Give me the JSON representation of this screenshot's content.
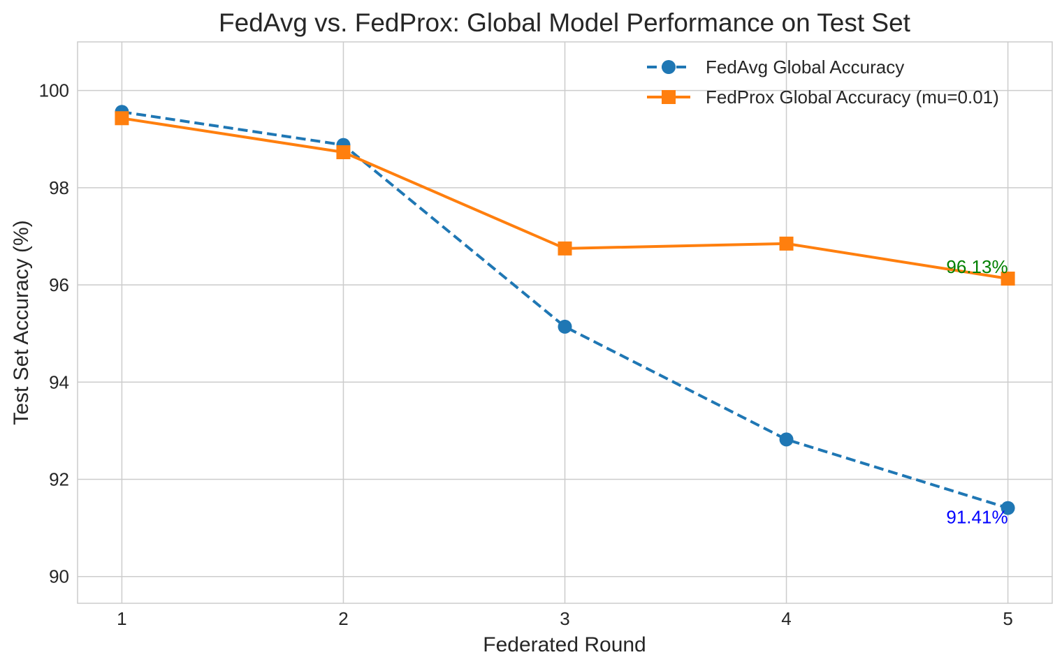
{
  "chart_data": {
    "type": "line",
    "title": "FedAvg vs. FedProx: Global Model Performance on Test Set",
    "xlabel": "Federated Round",
    "ylabel": "Test Set Accuracy (%)",
    "x": [
      1,
      2,
      3,
      4,
      5
    ],
    "x_ticks": [
      "1",
      "2",
      "3",
      "4",
      "5"
    ],
    "y_ticks": [
      "90",
      "92",
      "94",
      "96",
      "98",
      "100"
    ],
    "xlim": [
      0.8,
      5.2
    ],
    "ylim": [
      89.45,
      101.0
    ],
    "grid": true,
    "legend_position": "top-right",
    "series": [
      {
        "name": "FedAvg Global Accuracy",
        "values": [
          99.56,
          98.88,
          95.14,
          92.82,
          91.41
        ],
        "color": "#1f77b4",
        "line_style": "dashed",
        "marker": "circle",
        "end_label": "91.41%",
        "end_label_color": "#0000ff"
      },
      {
        "name": "FedProx Global Accuracy (mu=0.01)",
        "values": [
          99.43,
          98.73,
          96.75,
          96.85,
          96.13
        ],
        "color": "#ff7f0e",
        "line_style": "solid",
        "marker": "square",
        "end_label": "96.13%",
        "end_label_color": "#008000"
      }
    ]
  }
}
